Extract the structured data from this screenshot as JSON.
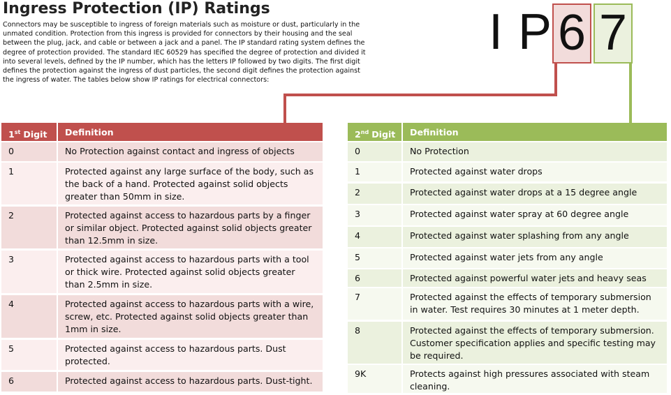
{
  "header": {
    "title": "Ingress Protection (IP) Ratings",
    "intro": "Connectors may be susceptible to ingress of foreign materials such as moisture or dust, particularly in the unmated condition. Protection from this ingress is provided for connectors by their housing and the seal between the plug, jack, and cable or between a jack and a panel. The IP standard rating system defines the degree of protection provided. The standard IEC 60529 has specified the degree of protection and divided it into several levels, defined by the IP number, which has the letters IP followed by two digits. The first digit defines the protection against the ingress of dust particles, the second digit defines the protection against the ingress of water. The tables below show IP ratings for electrical connectors:"
  },
  "code": {
    "letter_1": "I",
    "letter_2": "P",
    "first_digit": "6",
    "second_digit": "7"
  },
  "first_table": {
    "digit_number": "1",
    "digit_suffix": "st",
    "digit_word": "Digit",
    "definition_header": "Definition",
    "rows": [
      [
        "0",
        "No Protection against contact and ingress of objects"
      ],
      [
        "1",
        "Protected against any large surface of the body, such as the back of a hand. Protected against solid objects greater than 50mm in size."
      ],
      [
        "2",
        "Protected against access to hazardous parts by a finger or similar object. Protected against solid objects greater than 12.5mm in size."
      ],
      [
        "3",
        "Protected against access to hazardous parts with a tool or thick wire. Protected against solid objects greater than 2.5mm in size."
      ],
      [
        "4",
        "Protected against access to hazardous parts with a wire, screw, etc. Protected against solid objects greater than 1mm in size."
      ],
      [
        "5",
        "Protected against access to hazardous parts. Dust protected."
      ],
      [
        "6",
        "Protected against access to hazardous parts. Dust-tight."
      ]
    ]
  },
  "second_table": {
    "digit_number": "2",
    "digit_suffix": "nd",
    "digit_word": "Digit",
    "definition_header": "Definition",
    "rows": [
      [
        "0",
        "No Protection"
      ],
      [
        "1",
        "Protected against water drops"
      ],
      [
        "2",
        "Protected against water drops at a 15 degree angle"
      ],
      [
        "3",
        "Protected against water spray at 60 degree angle"
      ],
      [
        "4",
        "Protected against water splashing from any angle"
      ],
      [
        "5",
        "Protected against water jets from any angle"
      ],
      [
        "6",
        "Protected against powerful water jets and heavy seas"
      ],
      [
        "7",
        "Protected against the effects of temporary submersion in water. Test requires 30 minutes at 1 meter depth."
      ],
      [
        "8",
        "Protected against the effects of temporary submersion. Customer specification applies and specific testing may be required."
      ],
      [
        "9K",
        "Protects against high pressures associated with steam cleaning."
      ]
    ]
  }
}
